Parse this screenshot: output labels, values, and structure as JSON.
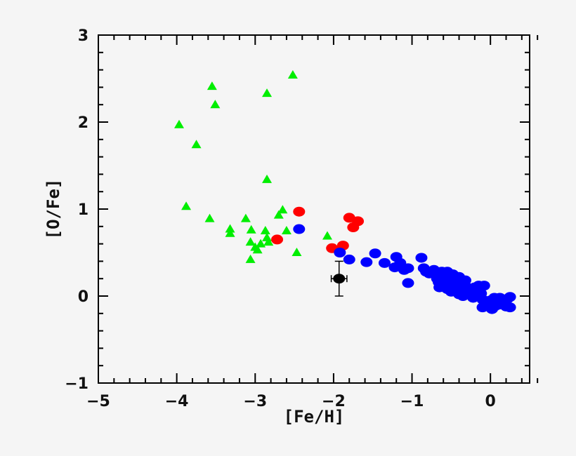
{
  "chart_data": {
    "type": "scatter",
    "xlabel": "[Fe/H]",
    "ylabel": "[O/Fe]",
    "xlim": [
      -5,
      0.5
    ],
    "ylim": [
      -1,
      3
    ],
    "x_ticks": [
      -5,
      -4,
      -3,
      -2,
      -1,
      0
    ],
    "y_ticks": [
      -1,
      0,
      1,
      2,
      3
    ],
    "grid": false,
    "series": [
      {
        "marker": "triangle",
        "color": "#00ee00",
        "points": [
          [
            -3.97,
            1.97
          ],
          [
            -3.55,
            2.41
          ],
          [
            -3.51,
            2.2
          ],
          [
            -3.75,
            1.74
          ],
          [
            -2.85,
            2.33
          ],
          [
            -2.52,
            2.54
          ],
          [
            -2.85,
            1.34
          ],
          [
            -3.88,
            1.03
          ],
          [
            -3.58,
            0.89
          ],
          [
            -3.32,
            0.77
          ],
          [
            -3.32,
            0.72
          ],
          [
            -3.12,
            0.89
          ],
          [
            -3.05,
            0.76
          ],
          [
            -2.87,
            0.75
          ],
          [
            -2.7,
            0.93
          ],
          [
            -2.65,
            0.99
          ],
          [
            -2.6,
            0.75
          ],
          [
            -2.85,
            0.67
          ],
          [
            -2.83,
            0.62
          ],
          [
            -2.93,
            0.6
          ],
          [
            -3.0,
            0.56
          ],
          [
            -2.97,
            0.53
          ],
          [
            -3.06,
            0.62
          ],
          [
            -3.06,
            0.42
          ],
          [
            -2.47,
            0.5
          ],
          [
            -2.08,
            0.69
          ]
        ]
      },
      {
        "marker": "circle",
        "color": "#ff0000",
        "points": [
          [
            -2.44,
            0.97
          ],
          [
            -2.72,
            0.65
          ],
          [
            -2.02,
            0.55
          ],
          [
            -1.88,
            0.58
          ],
          [
            -1.8,
            0.9
          ],
          [
            -1.75,
            0.79
          ],
          [
            -1.69,
            0.86
          ]
        ]
      },
      {
        "marker": "circle",
        "color": "#0000ff",
        "points": [
          [
            -2.44,
            0.77
          ],
          [
            -1.92,
            0.5
          ],
          [
            -1.8,
            0.42
          ],
          [
            -1.47,
            0.49
          ],
          [
            -1.58,
            0.39
          ],
          [
            -1.35,
            0.38
          ],
          [
            -1.2,
            0.45
          ],
          [
            -1.15,
            0.38
          ],
          [
            -1.22,
            0.33
          ],
          [
            -1.05,
            0.32
          ],
          [
            -1.1,
            0.3
          ],
          [
            -1.05,
            0.15
          ],
          [
            -0.88,
            0.44
          ],
          [
            -0.85,
            0.32
          ],
          [
            -0.82,
            0.28
          ],
          [
            -0.78,
            0.26
          ],
          [
            -0.72,
            0.3
          ],
          [
            -0.7,
            0.25
          ],
          [
            -0.68,
            0.2
          ],
          [
            -0.66,
            0.16
          ],
          [
            -0.65,
            0.1
          ],
          [
            -0.62,
            0.28
          ],
          [
            -0.6,
            0.22
          ],
          [
            -0.58,
            0.15
          ],
          [
            -0.55,
            0.28
          ],
          [
            -0.55,
            0.08
          ],
          [
            -0.52,
            0.2
          ],
          [
            -0.5,
            0.12
          ],
          [
            -0.5,
            0.05
          ],
          [
            -0.48,
            0.25
          ],
          [
            -0.45,
            0.16
          ],
          [
            -0.43,
            0.09
          ],
          [
            -0.4,
            0.22
          ],
          [
            -0.4,
            0.02
          ],
          [
            -0.38,
            0.14
          ],
          [
            -0.35,
            0.08
          ],
          [
            -0.35,
            0.0
          ],
          [
            -0.32,
            0.18
          ],
          [
            -0.3,
            0.1
          ],
          [
            -0.28,
            0.02
          ],
          [
            -0.25,
            0.07
          ],
          [
            -0.22,
            -0.02
          ],
          [
            -0.2,
            0.1
          ],
          [
            -0.18,
            0.04
          ],
          [
            -0.15,
            0.12
          ],
          [
            -0.12,
            0.03
          ],
          [
            -0.1,
            -0.04
          ],
          [
            -0.1,
            -0.13
          ],
          [
            -0.08,
            0.12
          ],
          [
            -0.05,
            -0.06
          ],
          [
            -0.02,
            -0.1
          ],
          [
            0.0,
            -0.05
          ],
          [
            0.02,
            -0.15
          ],
          [
            0.05,
            -0.02
          ],
          [
            0.05,
            -0.12
          ],
          [
            0.08,
            -0.06
          ],
          [
            0.1,
            -0.1
          ],
          [
            0.12,
            -0.02
          ],
          [
            0.15,
            -0.08
          ],
          [
            0.18,
            -0.04
          ],
          [
            0.2,
            -0.12
          ],
          [
            0.22,
            -0.03
          ],
          [
            0.25,
            -0.01
          ],
          [
            0.25,
            -0.13
          ]
        ]
      },
      {
        "marker": "circle",
        "color": "#000000",
        "points": [
          [
            -1.93,
            0.2
          ]
        ],
        "x_error": 0.1,
        "y_error": 0.2
      }
    ]
  }
}
